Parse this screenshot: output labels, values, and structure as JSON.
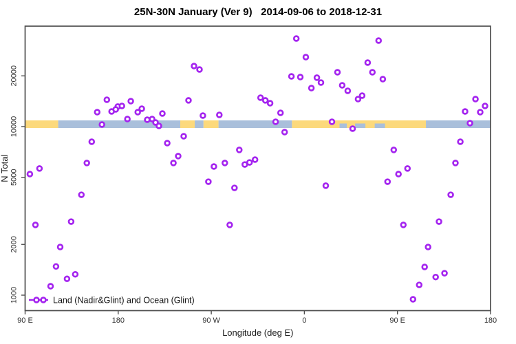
{
  "chart_data": {
    "type": "scatter",
    "title": "25N-30N January (Ver 9)   2014-09-06 to 2018-12-31",
    "xlabel": "Longitude (deg E)",
    "ylabel": "N Total",
    "y_scale": "log",
    "xlim": [
      90,
      540
    ],
    "ylim": [
      800,
      40000
    ],
    "grid": false,
    "legend_label": "Land (Nadir&Glint) and Ocean (Glint)",
    "legend_position": "bottom-left",
    "marker": {
      "shape": "open-circle",
      "color": "#a424ef",
      "fill": "#ffffff"
    },
    "colors": {
      "land": "#fcd97c",
      "ocean": "#a9bfdb",
      "axis": "#4d4d4d",
      "tick_text": "#303030"
    },
    "x_ticks": [
      {
        "value": 90,
        "label": "90 E"
      },
      {
        "value": 180,
        "label": "180"
      },
      {
        "value": 270,
        "label": "90 W"
      },
      {
        "value": 360,
        "label": "0"
      },
      {
        "value": 450,
        "label": "90 E"
      },
      {
        "value": 540,
        "label": "180"
      }
    ],
    "y_ticks": [
      {
        "value": 1000,
        "label": "1000"
      },
      {
        "value": 2000,
        "label": "2000"
      },
      {
        "value": 5000,
        "label": "5000"
      },
      {
        "value": 10000,
        "label": "10000"
      },
      {
        "value": 20000,
        "label": "20000"
      }
    ],
    "surface_band": {
      "center_value": 10000,
      "segments": [
        {
          "surface": "land",
          "from": 90,
          "to": 122
        },
        {
          "surface": "ocean",
          "from": 122,
          "to": 240
        },
        {
          "surface": "land",
          "from": 240,
          "to": 254
        },
        {
          "surface": "ocean",
          "from": 254,
          "to": 262.5
        },
        {
          "surface": "land",
          "from": 262.5,
          "to": 277
        },
        {
          "surface": "ocean",
          "from": 277,
          "to": 348
        },
        {
          "surface": "land",
          "from": 348,
          "to": 477.5
        },
        {
          "surface": "ocean",
          "from": 477.5,
          "to": 540
        }
      ],
      "ocean_patches_in_land": [
        {
          "from": 394,
          "to": 401
        },
        {
          "from": 409,
          "to": 419
        },
        {
          "from": 428,
          "to": 438
        }
      ]
    },
    "points": [
      [
        169.0,
        14430
      ],
      [
        192.2,
        14160
      ],
      [
        179.6,
        13140
      ],
      [
        183.6,
        13260
      ],
      [
        159.7,
        12180
      ],
      [
        173.6,
        12300
      ],
      [
        177.6,
        12650
      ],
      [
        198.9,
        12180
      ],
      [
        202.8,
        12770
      ],
      [
        222.7,
        11960
      ],
      [
        188.9,
        11090
      ],
      [
        208.1,
        10990
      ],
      [
        212.8,
        11090
      ],
      [
        216.1,
        10580
      ],
      [
        219.4,
        10090
      ],
      [
        164.3,
        10290
      ],
      [
        154.4,
        8130
      ],
      [
        149.7,
        6080
      ],
      [
        103.9,
        5640
      ],
      [
        94.6,
        5230
      ],
      [
        144.4,
        3940
      ],
      [
        134.5,
        2730
      ],
      [
        100.0,
        2610
      ],
      [
        123.9,
        1930
      ],
      [
        119.9,
        1480
      ],
      [
        138.5,
        1330
      ],
      [
        130.5,
        1250
      ],
      [
        114.6,
        1130
      ],
      [
        253.3,
        22870
      ],
      [
        258.6,
        21820
      ],
      [
        248.0,
        14300
      ],
      [
        261.9,
        11620
      ],
      [
        277.8,
        11730
      ],
      [
        227.4,
        7980
      ],
      [
        243.3,
        8770
      ],
      [
        238.0,
        6680
      ],
      [
        233.4,
        6080
      ],
      [
        272.5,
        5800
      ],
      [
        267.2,
        4710
      ],
      [
        352.2,
        33300
      ],
      [
        361.4,
        25840
      ],
      [
        347.5,
        19860
      ],
      [
        356.1,
        19680
      ],
      [
        372.1,
        19500
      ],
      [
        366.8,
        16930
      ],
      [
        376.0,
        18250
      ],
      [
        317.6,
        14840
      ],
      [
        322.3,
        14300
      ],
      [
        326.9,
        13770
      ],
      [
        336.9,
        12070
      ],
      [
        332.2,
        10680
      ],
      [
        340.9,
        9280
      ],
      [
        297.1,
        7270
      ],
      [
        283.1,
        6080
      ],
      [
        302.4,
        5960
      ],
      [
        307.0,
        6130
      ],
      [
        312.3,
        6370
      ],
      [
        292.4,
        4330
      ],
      [
        287.8,
        2610
      ],
      [
        431.8,
        32380
      ],
      [
        421.2,
        23970
      ],
      [
        425.8,
        21010
      ],
      [
        392.0,
        21010
      ],
      [
        435.8,
        19130
      ],
      [
        396.6,
        17580
      ],
      [
        401.9,
        16300
      ],
      [
        415.9,
        15270
      ],
      [
        411.9,
        14570
      ],
      [
        386.7,
        10680
      ],
      [
        406.6,
        9720
      ],
      [
        446.4,
        7270
      ],
      [
        459.7,
        5640
      ],
      [
        451.0,
        5230
      ],
      [
        440.4,
        4710
      ],
      [
        380.7,
        4460
      ],
      [
        455.7,
        2610
      ],
      [
        525.4,
        14570
      ],
      [
        534.7,
        13260
      ],
      [
        515.4,
        12300
      ],
      [
        530.0,
        12180
      ],
      [
        520.1,
        10480
      ],
      [
        510.8,
        8130
      ],
      [
        506.1,
        6080
      ],
      [
        501.5,
        3940
      ],
      [
        490.2,
        2730
      ],
      [
        479.6,
        1930
      ],
      [
        476.3,
        1470
      ],
      [
        495.5,
        1350
      ],
      [
        486.9,
        1280
      ],
      [
        471.0,
        1150
      ],
      [
        465.0,
        945
      ]
    ]
  }
}
